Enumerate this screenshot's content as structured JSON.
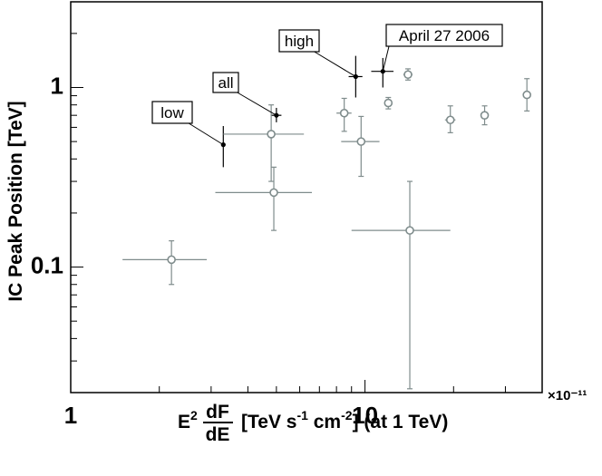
{
  "chart_data": {
    "type": "scatter",
    "x_scale": "log",
    "y_scale": "log",
    "xlim": [
      1,
      40
    ],
    "ylim": [
      0.02,
      3.0
    ],
    "x_ticks": [
      {
        "v": 1,
        "label": "1"
      },
      {
        "v": 10,
        "label": "10"
      }
    ],
    "y_ticks": [
      {
        "v": 0.1,
        "label": "0.1"
      },
      {
        "v": 1,
        "label": "1"
      }
    ],
    "x_exponent_label": "×10⁻¹¹",
    "ylabel": "IC Peak Position [TeV]",
    "xlabel": {
      "prefix": "E",
      "prefix_sup": "2",
      "frac_num": "dF",
      "frac_den": "dE",
      "p1": "[TeV s",
      "s1": "-1",
      "p2": " cm",
      "s2": "-2",
      "p3": "] (at 1 TeV)"
    },
    "grid": false,
    "series": [
      {
        "style": "filled-black",
        "points": [
          {
            "x": 3.3,
            "y": 0.48,
            "xerr": [
              3.3,
              3.3
            ],
            "yerr": [
              0.36,
              0.61
            ]
          },
          {
            "x": 5.0,
            "y": 0.7,
            "xerr": [
              4.8,
              5.2
            ],
            "yerr": [
              0.64,
              0.77
            ]
          },
          {
            "x": 9.3,
            "y": 1.15,
            "xerr": [
              8.8,
              9.8
            ],
            "yerr": [
              0.88,
              1.5
            ]
          },
          {
            "x": 11.5,
            "y": 1.23,
            "xerr": [
              10.5,
              12.5
            ],
            "yerr": [
              1.0,
              1.46
            ]
          }
        ]
      },
      {
        "style": "open-gray",
        "points": [
          {
            "x": 2.2,
            "y": 0.11,
            "xerr": [
              1.5,
              2.9
            ],
            "yerr": [
              0.08,
              0.14
            ]
          },
          {
            "x": 4.8,
            "y": 0.55,
            "xerr": [
              3.3,
              6.2
            ],
            "yerr": [
              0.3,
              0.8
            ]
          },
          {
            "x": 4.9,
            "y": 0.26,
            "xerr": [
              3.1,
              6.6
            ],
            "yerr": [
              0.16,
              0.36
            ]
          },
          {
            "x": 8.5,
            "y": 0.72,
            "xerr": [
              8.0,
              9.0
            ],
            "yerr": [
              0.57,
              0.87
            ]
          },
          {
            "x": 9.7,
            "y": 0.5,
            "xerr": [
              8.3,
              11.2
            ],
            "yerr": [
              0.32,
              0.69
            ]
          },
          {
            "x": 12.0,
            "y": 0.82,
            "xerr": [
              12.0,
              12.0
            ],
            "yerr": [
              0.76,
              0.88
            ]
          },
          {
            "x": 14.2,
            "y": 0.16,
            "xerr": [
              9.0,
              19.5
            ],
            "yerr": [
              0.021,
              0.3
            ]
          },
          {
            "x": 14.0,
            "y": 1.18,
            "xerr": [
              13.5,
              14.5
            ],
            "yerr": [
              1.1,
              1.27
            ]
          },
          {
            "x": 19.5,
            "y": 0.66,
            "xerr": [
              18.7,
              20.3
            ],
            "yerr": [
              0.56,
              0.79
            ]
          },
          {
            "x": 25.5,
            "y": 0.7,
            "xerr": [
              25.5,
              25.5
            ],
            "yerr": [
              0.62,
              0.79
            ]
          },
          {
            "x": 35.5,
            "y": 0.91,
            "xerr": [
              35.5,
              35.5
            ],
            "yerr": [
              0.74,
              1.12
            ]
          }
        ]
      }
    ],
    "annotations": [
      {
        "text": "low",
        "x": 3.3,
        "y": 0.48
      },
      {
        "text": "all",
        "x": 5.0,
        "y": 0.7
      },
      {
        "text": "high",
        "x": 9.3,
        "y": 1.15
      },
      {
        "text": "April 27 2006",
        "x": 11.5,
        "y": 1.23
      }
    ]
  }
}
